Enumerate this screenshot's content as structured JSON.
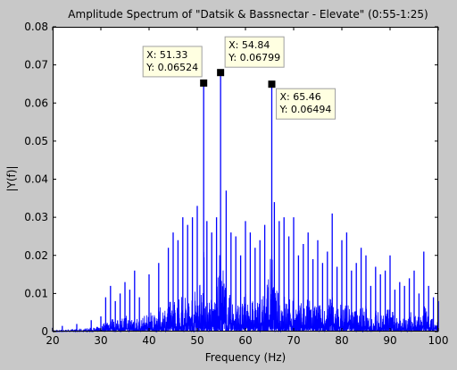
{
  "chart_data": {
    "type": "line",
    "title": "Amplitude Spectrum of \"Datsik & Bassnectar - Elevate\" (0:55-1:25)",
    "xlabel": "Frequency (Hz)",
    "ylabel": "|Y(f)|",
    "xlim": [
      20,
      100
    ],
    "ylim": [
      0,
      0.08
    ],
    "xticks": [
      "20",
      "30",
      "40",
      "50",
      "60",
      "70",
      "80",
      "90",
      "100"
    ],
    "yticks": [
      "0",
      "0.01",
      "0.02",
      "0.03",
      "0.04",
      "0.05",
      "0.06",
      "0.07",
      "0.08"
    ],
    "grid": false,
    "line_color": "#0000ff",
    "series": [
      {
        "x": [
          20,
          22,
          25,
          28,
          30,
          31,
          32,
          33,
          34,
          35,
          36,
          37,
          38,
          40,
          42,
          44,
          45,
          46,
          47,
          48,
          49,
          50,
          51.33,
          52,
          53,
          54,
          54.84,
          56,
          57,
          58,
          59,
          60,
          61,
          62,
          63,
          64,
          65.46,
          66,
          67,
          68,
          69,
          70,
          71,
          72,
          73,
          74,
          75,
          76,
          77,
          78,
          79,
          80,
          81,
          82,
          83,
          84,
          85,
          86,
          87,
          88,
          89,
          90,
          91,
          92,
          93,
          94,
          95,
          96,
          97,
          98,
          99,
          100
        ],
        "y": [
          0.001,
          0.0015,
          0.002,
          0.003,
          0.004,
          0.009,
          0.012,
          0.008,
          0.01,
          0.013,
          0.011,
          0.016,
          0.009,
          0.015,
          0.018,
          0.022,
          0.026,
          0.024,
          0.03,
          0.028,
          0.03,
          0.033,
          0.06524,
          0.029,
          0.026,
          0.03,
          0.06799,
          0.037,
          0.026,
          0.025,
          0.02,
          0.029,
          0.026,
          0.022,
          0.024,
          0.028,
          0.06494,
          0.034,
          0.029,
          0.03,
          0.025,
          0.03,
          0.02,
          0.023,
          0.026,
          0.019,
          0.024,
          0.018,
          0.021,
          0.031,
          0.017,
          0.024,
          0.026,
          0.016,
          0.018,
          0.022,
          0.02,
          0.012,
          0.017,
          0.015,
          0.016,
          0.02,
          0.011,
          0.013,
          0.012,
          0.014,
          0.016,
          0.01,
          0.021,
          0.012,
          0.009,
          0.008
        ]
      }
    ],
    "datatips": [
      {
        "x": 51.33,
        "y": 0.06524,
        "x_label": "X: 51.33",
        "y_label": "Y: 0.06524",
        "side": "above-left"
      },
      {
        "x": 54.84,
        "y": 0.06799,
        "x_label": "X: 54.84",
        "y_label": "Y: 0.06799",
        "side": "above-right"
      },
      {
        "x": 65.46,
        "y": 0.06494,
        "x_label": "X: 65.46",
        "y_label": "Y: 0.06494",
        "side": "below-right"
      }
    ]
  }
}
